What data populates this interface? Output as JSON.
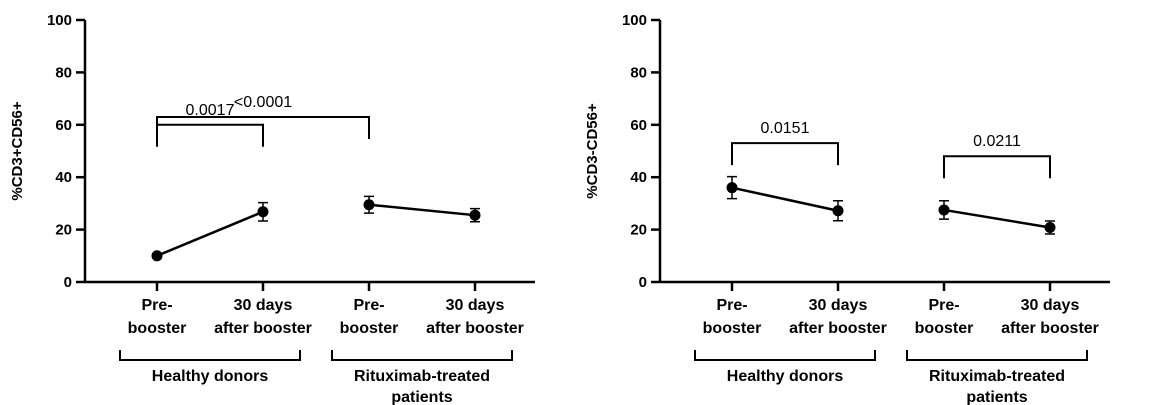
{
  "chart_data": [
    {
      "type": "line",
      "ylabel": "%CD3+CD56+",
      "ylim": [
        0,
        100
      ],
      "yticks": [
        0,
        20,
        40,
        60,
        80,
        100
      ],
      "categories": [
        [
          "Pre-",
          "booster"
        ],
        [
          "30 days",
          "after booster"
        ],
        [
          "Pre-",
          "booster"
        ],
        [
          "30 days",
          "after booster"
        ]
      ],
      "groups": [
        {
          "name": [
            "Healthy donors"
          ],
          "members": [
            0,
            1
          ]
        },
        {
          "name": [
            "Rituximab-treated",
            "patients"
          ],
          "members": [
            2,
            3
          ]
        }
      ],
      "series": [
        {
          "group": 0,
          "x": [
            0,
            1
          ],
          "values": [
            10,
            26.8
          ],
          "err": [
            0.8,
            3.5
          ]
        },
        {
          "group": 1,
          "x": [
            2,
            3
          ],
          "values": [
            29.5,
            25.5
          ],
          "err": [
            3.2,
            2.5
          ]
        }
      ],
      "comparisons": [
        {
          "from": 0,
          "to": 1,
          "level": 60,
          "label": "0.0017"
        },
        {
          "from": 0,
          "to": 2,
          "level": 63,
          "label": "<0.0001"
        }
      ]
    },
    {
      "type": "line",
      "ylabel": "%CD3-CD56+",
      "ylim": [
        0,
        100
      ],
      "yticks": [
        0,
        20,
        40,
        60,
        80,
        100
      ],
      "categories": [
        [
          "Pre-",
          "booster"
        ],
        [
          "30 days",
          "after booster"
        ],
        [
          "Pre-",
          "booster"
        ],
        [
          "30 days",
          "after booster"
        ]
      ],
      "groups": [
        {
          "name": [
            "Healthy donors"
          ],
          "members": [
            0,
            1
          ]
        },
        {
          "name": [
            "Rituximab-treated",
            "patients"
          ],
          "members": [
            2,
            3
          ]
        }
      ],
      "series": [
        {
          "group": 0,
          "x": [
            0,
            1
          ],
          "values": [
            36,
            27.2
          ],
          "err": [
            4.2,
            3.8
          ]
        },
        {
          "group": 1,
          "x": [
            2,
            3
          ],
          "values": [
            27.5,
            20.8
          ],
          "err": [
            3.5,
            2.5
          ]
        }
      ],
      "comparisons": [
        {
          "from": 0,
          "to": 1,
          "level": 53,
          "label": "0.0151"
        },
        {
          "from": 2,
          "to": 3,
          "level": 48,
          "label": "0.0211"
        }
      ]
    }
  ]
}
